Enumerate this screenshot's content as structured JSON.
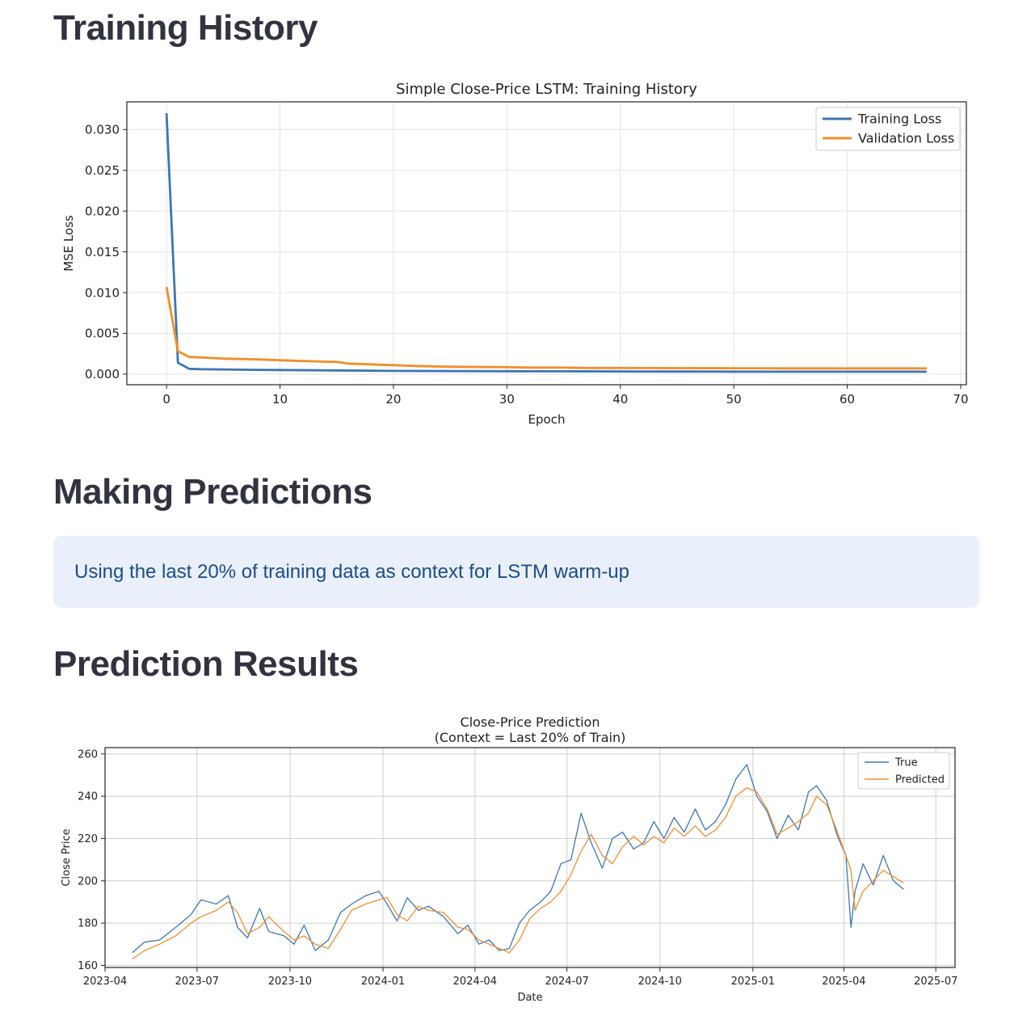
{
  "headings": {
    "training_history": "Training History",
    "making_predictions": "Making Predictions",
    "prediction_results": "Prediction Results"
  },
  "info": {
    "text": "Using the last 20% of training data as context for LSTM warm-up"
  },
  "colors": {
    "blue": "#3d76b2",
    "orange": "#f28e2b",
    "info_bg": "#e9f0fb",
    "info_text": "#1d4c8a"
  },
  "chart_data": [
    {
      "type": "line",
      "title": "Simple Close-Price LSTM: Training History",
      "xlabel": "Epoch",
      "ylabel": "MSE Loss",
      "xlim": [
        -3.5,
        70.5
      ],
      "ylim": [
        -0.0013,
        0.0334
      ],
      "xticks": [
        "0",
        "10",
        "20",
        "30",
        "40",
        "50",
        "60",
        "70"
      ],
      "yticks": [
        "0.000",
        "0.005",
        "0.010",
        "0.015",
        "0.020",
        "0.025",
        "0.030"
      ],
      "grid": true,
      "legend": "top-right",
      "series": [
        {
          "name": "Training Loss",
          "color": "#3d76b2",
          "x": [
            0,
            1,
            2,
            3,
            5,
            8,
            10,
            15,
            20,
            25,
            30,
            35,
            40,
            45,
            50,
            55,
            60,
            67
          ],
          "y": [
            0.032,
            0.0014,
            0.00065,
            0.0006,
            0.00057,
            0.00052,
            0.0005,
            0.00045,
            0.0004,
            0.00038,
            0.00036,
            0.00035,
            0.00033,
            0.00032,
            0.00031,
            0.0003,
            0.0003,
            0.0003
          ]
        },
        {
          "name": "Validation Loss",
          "color": "#f28e2b",
          "x": [
            0,
            1,
            2,
            3,
            5,
            8,
            10,
            12,
            15,
            16,
            18,
            20,
            22,
            25,
            30,
            32,
            35,
            37,
            40,
            45,
            50,
            52,
            55,
            60,
            67
          ],
          "y": [
            0.0107,
            0.0028,
            0.0021,
            0.00205,
            0.0019,
            0.0018,
            0.0017,
            0.0016,
            0.0015,
            0.0013,
            0.0012,
            0.0011,
            0.001,
            0.0009,
            0.00085,
            0.0008,
            0.0008,
            0.00075,
            0.00075,
            0.00073,
            0.00072,
            0.00072,
            0.0007,
            0.0007,
            0.0007
          ]
        }
      ]
    },
    {
      "type": "line",
      "title": "Close-Price Prediction",
      "subtitle": "(Context = Last 20% of Train)",
      "xlabel": "Date",
      "ylabel": "Close Price",
      "xlim": [
        "2023-04-01",
        "2025-07-20"
      ],
      "ylim": [
        159,
        263
      ],
      "xticks": [
        "2023-04",
        "2023-07",
        "2023-10",
        "2024-01",
        "2024-04",
        "2024-07",
        "2024-10",
        "2025-01",
        "2025-04",
        "2025-07"
      ],
      "yticks": [
        "160",
        "180",
        "200",
        "220",
        "240",
        "260"
      ],
      "grid": true,
      "legend": "top-right",
      "series": [
        {
          "name": "True",
          "color": "#3d76b2",
          "x": [
            "2023-04-28",
            "2023-05-10",
            "2023-05-25",
            "2023-06-10",
            "2023-06-25",
            "2023-07-05",
            "2023-07-20",
            "2023-08-01",
            "2023-08-10",
            "2023-08-20",
            "2023-09-01",
            "2023-09-10",
            "2023-09-25",
            "2023-10-05",
            "2023-10-15",
            "2023-10-26",
            "2023-11-08",
            "2023-11-20",
            "2023-12-01",
            "2023-12-15",
            "2023-12-28",
            "2024-01-05",
            "2024-01-15",
            "2024-01-25",
            "2024-02-05",
            "2024-02-15",
            "2024-03-01",
            "2024-03-15",
            "2024-03-25",
            "2024-04-05",
            "2024-04-15",
            "2024-04-25",
            "2024-05-05",
            "2024-05-15",
            "2024-05-25",
            "2024-06-05",
            "2024-06-15",
            "2024-06-25",
            "2024-07-05",
            "2024-07-15",
            "2024-07-25",
            "2024-08-05",
            "2024-08-15",
            "2024-08-25",
            "2024-09-05",
            "2024-09-15",
            "2024-09-25",
            "2024-10-05",
            "2024-10-15",
            "2024-10-25",
            "2024-11-05",
            "2024-11-15",
            "2024-11-25",
            "2024-12-05",
            "2024-12-15",
            "2024-12-26",
            "2025-01-05",
            "2025-01-15",
            "2025-01-25",
            "2025-02-05",
            "2025-02-15",
            "2025-02-25",
            "2025-03-05",
            "2025-03-15",
            "2025-03-25",
            "2025-04-03",
            "2025-04-08",
            "2025-04-12",
            "2025-04-20",
            "2025-04-30",
            "2025-05-10",
            "2025-05-20",
            "2025-05-30"
          ],
          "y": [
            166,
            171,
            172,
            178,
            184,
            191,
            189,
            193,
            178,
            173,
            187,
            176,
            174,
            170,
            179,
            167,
            172,
            185,
            189,
            193,
            195,
            189,
            181,
            192,
            186,
            188,
            183,
            175,
            179,
            170,
            172,
            167,
            168,
            180,
            186,
            190,
            195,
            208,
            210,
            232,
            218,
            206,
            220,
            223,
            215,
            218,
            228,
            220,
            230,
            223,
            234,
            224,
            228,
            236,
            248,
            255,
            240,
            233,
            220,
            231,
            224,
            242,
            245,
            238,
            222,
            212,
            178,
            195,
            208,
            198,
            212,
            200,
            196
          ],
          "line_width": 1.3
        },
        {
          "name": "Predicted",
          "color": "#f28e2b",
          "x": [
            "2023-04-28",
            "2023-05-10",
            "2023-05-25",
            "2023-06-10",
            "2023-06-25",
            "2023-07-05",
            "2023-07-20",
            "2023-08-01",
            "2023-08-10",
            "2023-08-20",
            "2023-09-01",
            "2023-09-10",
            "2023-09-25",
            "2023-10-05",
            "2023-10-15",
            "2023-10-26",
            "2023-11-08",
            "2023-11-20",
            "2023-12-01",
            "2023-12-15",
            "2023-12-28",
            "2024-01-05",
            "2024-01-15",
            "2024-01-25",
            "2024-02-05",
            "2024-02-15",
            "2024-03-01",
            "2024-03-15",
            "2024-03-25",
            "2024-04-05",
            "2024-04-15",
            "2024-04-25",
            "2024-05-05",
            "2024-05-15",
            "2024-05-25",
            "2024-06-05",
            "2024-06-15",
            "2024-06-25",
            "2024-07-05",
            "2024-07-15",
            "2024-07-25",
            "2024-08-05",
            "2024-08-15",
            "2024-08-25",
            "2024-09-05",
            "2024-09-15",
            "2024-09-25",
            "2024-10-05",
            "2024-10-15",
            "2024-10-25",
            "2024-11-05",
            "2024-11-15",
            "2024-11-25",
            "2024-12-05",
            "2024-12-15",
            "2024-12-26",
            "2025-01-05",
            "2025-01-15",
            "2025-01-25",
            "2025-02-05",
            "2025-02-15",
            "2025-02-25",
            "2025-03-05",
            "2025-03-15",
            "2025-03-25",
            "2025-04-03",
            "2025-04-08",
            "2025-04-12",
            "2025-04-20",
            "2025-04-30",
            "2025-05-10",
            "2025-05-20",
            "2025-05-30"
          ],
          "y": [
            163,
            167,
            170,
            174,
            180,
            183,
            186,
            190,
            185,
            175,
            178,
            183,
            176,
            172,
            174,
            170,
            168,
            177,
            186,
            189,
            191,
            192,
            184,
            181,
            188,
            186,
            185,
            178,
            177,
            172,
            170,
            168,
            166,
            172,
            182,
            187,
            190,
            195,
            203,
            214,
            222,
            212,
            208,
            216,
            221,
            217,
            221,
            218,
            225,
            221,
            226,
            221,
            224,
            230,
            240,
            244,
            242,
            234,
            222,
            225,
            228,
            232,
            240,
            236,
            224,
            212,
            205,
            186,
            195,
            200,
            205,
            202,
            199
          ],
          "line_width": 1.3
        }
      ]
    }
  ]
}
